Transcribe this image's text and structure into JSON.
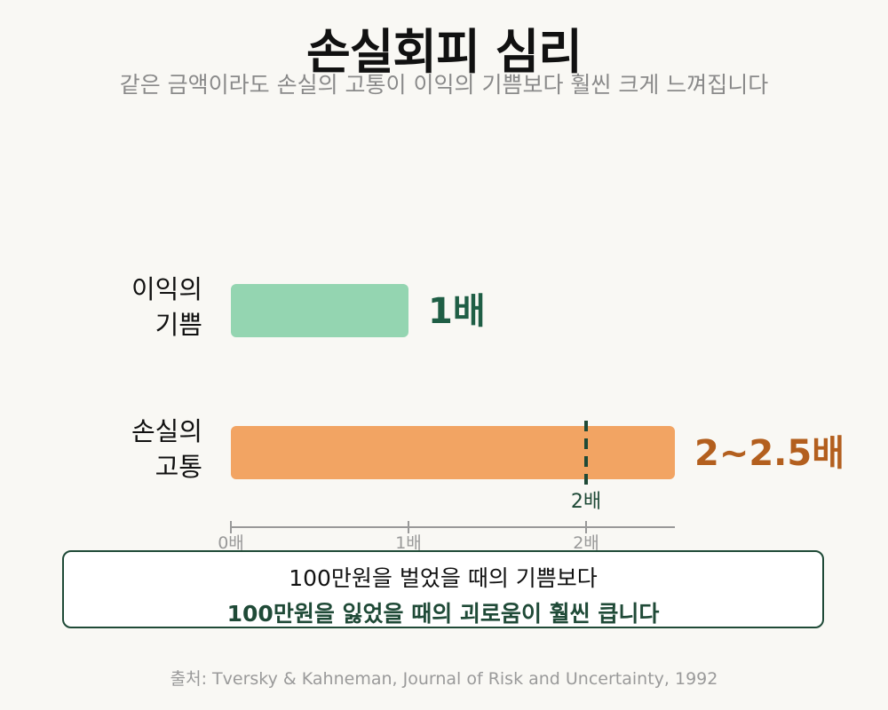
{
  "header": {
    "title": "손실회피 심리",
    "subtitle": "같은 금액이라도 손실의 고통이 이익의 기쁨보다 훨씬 크게 느껴집니다"
  },
  "chart_data": {
    "type": "bar",
    "orientation": "horizontal",
    "categories": [
      [
        "이익의",
        "기쁨"
      ],
      [
        "손실의",
        "고통"
      ]
    ],
    "values": [
      1,
      2.5
    ],
    "value_labels": [
      "1배",
      "2~2.5배"
    ],
    "colors": [
      "#94d5b1",
      "#f2a463"
    ],
    "label_colors": [
      "#1f5e45",
      "#b35f1e"
    ],
    "xlim": [
      0,
      2.5
    ],
    "ticks": [
      0,
      1,
      2
    ],
    "tick_labels": [
      "0배",
      "1배",
      "2배"
    ],
    "reference_line": {
      "value": 2,
      "label": "2배",
      "color": "#1f4a37"
    },
    "grid": false
  },
  "callout": {
    "line1": "100만원을 벌었을 때의 기쁨보다",
    "line2": "100만원을 잃었을 때의 괴로움이 훨씬 큽니다"
  },
  "source": "출처: Tversky & Kahneman, Journal of Risk and Uncertainty, 1992"
}
